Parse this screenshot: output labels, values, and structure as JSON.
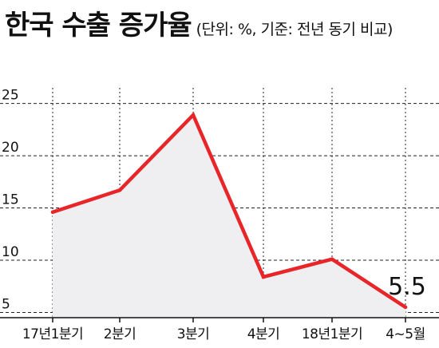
{
  "chart_data": {
    "type": "line",
    "title": "한국 수출 증가율",
    "subtitle": "(단위: %, 기준: 전년 동기 비교)",
    "categories": [
      "17년1분기",
      "2분기",
      "3분기",
      "4분기",
      "18년1분기",
      "4~5월"
    ],
    "series": [
      {
        "values": [
          14.6,
          16.7,
          23.9,
          8.4,
          10.1,
          5.5
        ]
      }
    ],
    "y_ticks": [
      5,
      10,
      15,
      20,
      25
    ],
    "ylim": [
      4.5,
      26.5
    ],
    "grid": true,
    "data_labels": [
      {
        "index": 5,
        "text": "5.5"
      }
    ],
    "colors": {
      "line": "#e8262a",
      "fill": "#efeff1",
      "grid": "#222222",
      "axis": "#111111"
    }
  }
}
